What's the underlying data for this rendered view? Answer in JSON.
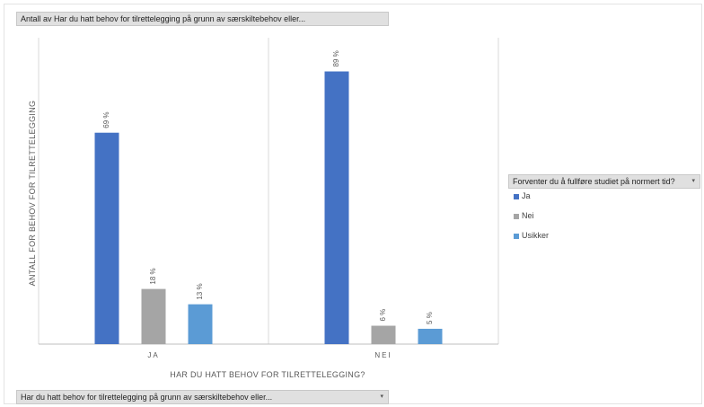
{
  "pivot": {
    "title_field": "Antall av Har du hatt behov for tilrettelegging på grunn av særskiltebehov eller...",
    "axis_field": "Har du hatt behov for tilrettelegging på grunn av særskiltebehov eller...",
    "legend_field": "Forventer du å fullføre studiet på normert tid?",
    "dropdown_glyph": "▾"
  },
  "chart_data": {
    "type": "bar",
    "xlabel": "HAR DU HATT BEHOV FOR TILRETTELEGGING?",
    "ylabel": "ANTALL FOR BEHOV FOR TILRETTELEGGING",
    "categories": [
      "JA",
      "NEI"
    ],
    "series": [
      {
        "name": "Ja",
        "values": [
          69,
          89
        ],
        "labels": [
          "69 %",
          "89 %"
        ],
        "color": "#4472c4"
      },
      {
        "name": "Nei",
        "values": [
          18,
          6
        ],
        "labels": [
          "18 %",
          "6 %"
        ],
        "color": "#a5a5a5"
      },
      {
        "name": "Usikker",
        "values": [
          13,
          5
        ],
        "labels": [
          "13 %",
          "5 %"
        ],
        "color": "#5b9bd5"
      }
    ],
    "value_unit": "%",
    "ylim": [
      0,
      100
    ],
    "grid": false,
    "legend": "right"
  }
}
